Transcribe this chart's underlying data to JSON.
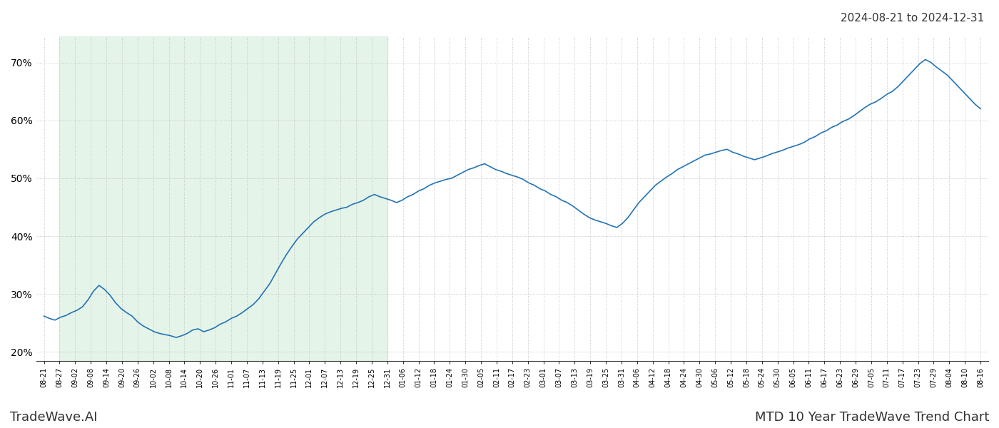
{
  "title_top_right": "2024-08-21 to 2024-12-31",
  "bottom_left": "TradeWave.AI",
  "bottom_right": "MTD 10 Year TradeWave Trend Chart",
  "line_color": "#2474b5",
  "shade_color": "#d4edda",
  "shade_alpha": 0.6,
  "ylim": [
    0.185,
    0.745
  ],
  "yticks": [
    0.2,
    0.3,
    0.4,
    0.5,
    0.6,
    0.7
  ],
  "background_color": "#ffffff",
  "grid_color": "#bbbbbb",
  "grid_style": ":",
  "x_labels": [
    "08-21",
    "08-27",
    "09-02",
    "09-08",
    "09-14",
    "09-20",
    "09-26",
    "10-02",
    "10-08",
    "10-14",
    "10-20",
    "10-26",
    "11-01",
    "11-07",
    "11-13",
    "11-19",
    "11-25",
    "12-01",
    "12-07",
    "12-13",
    "12-19",
    "12-25",
    "12-31",
    "01-06",
    "01-12",
    "01-18",
    "01-24",
    "01-30",
    "02-05",
    "02-11",
    "02-17",
    "02-23",
    "03-01",
    "03-07",
    "03-13",
    "03-19",
    "03-25",
    "03-31",
    "04-06",
    "04-12",
    "04-18",
    "04-24",
    "04-30",
    "05-06",
    "05-12",
    "05-18",
    "05-24",
    "05-30",
    "06-05",
    "06-11",
    "06-17",
    "06-23",
    "06-29",
    "07-05",
    "07-11",
    "07-17",
    "07-23",
    "07-29",
    "08-04",
    "08-10",
    "08-16"
  ],
  "shade_start_label": "08-27",
  "shade_end_label": "12-31",
  "values": [
    0.262,
    0.258,
    0.255,
    0.26,
    0.263,
    0.268,
    0.272,
    0.278,
    0.29,
    0.305,
    0.315,
    0.308,
    0.298,
    0.285,
    0.275,
    0.268,
    0.262,
    0.252,
    0.245,
    0.24,
    0.235,
    0.232,
    0.23,
    0.228,
    0.225,
    0.228,
    0.232,
    0.238,
    0.24,
    0.235,
    0.238,
    0.242,
    0.248,
    0.252,
    0.258,
    0.262,
    0.268,
    0.275,
    0.282,
    0.292,
    0.305,
    0.318,
    0.335,
    0.352,
    0.368,
    0.382,
    0.395,
    0.405,
    0.415,
    0.425,
    0.432,
    0.438,
    0.442,
    0.445,
    0.448,
    0.45,
    0.455,
    0.458,
    0.462,
    0.468,
    0.472,
    0.468,
    0.465,
    0.462,
    0.458,
    0.462,
    0.468,
    0.472,
    0.478,
    0.482,
    0.488,
    0.492,
    0.495,
    0.498,
    0.5,
    0.505,
    0.51,
    0.515,
    0.518,
    0.522,
    0.525,
    0.52,
    0.515,
    0.512,
    0.508,
    0.505,
    0.502,
    0.498,
    0.492,
    0.488,
    0.482,
    0.478,
    0.472,
    0.468,
    0.462,
    0.458,
    0.452,
    0.445,
    0.438,
    0.432,
    0.428,
    0.425,
    0.422,
    0.418,
    0.415,
    0.422,
    0.432,
    0.445,
    0.458,
    0.468,
    0.478,
    0.488,
    0.495,
    0.502,
    0.508,
    0.515,
    0.52,
    0.525,
    0.53,
    0.535,
    0.54,
    0.542,
    0.545,
    0.548,
    0.55,
    0.545,
    0.542,
    0.538,
    0.535,
    0.532,
    0.535,
    0.538,
    0.542,
    0.545,
    0.548,
    0.552,
    0.555,
    0.558,
    0.562,
    0.568,
    0.572,
    0.578,
    0.582,
    0.588,
    0.592,
    0.598,
    0.602,
    0.608,
    0.615,
    0.622,
    0.628,
    0.632,
    0.638,
    0.645,
    0.65,
    0.658,
    0.668,
    0.678,
    0.688,
    0.698,
    0.705,
    0.7,
    0.692,
    0.685,
    0.678,
    0.668,
    0.658,
    0.648,
    0.638,
    0.628,
    0.62
  ]
}
